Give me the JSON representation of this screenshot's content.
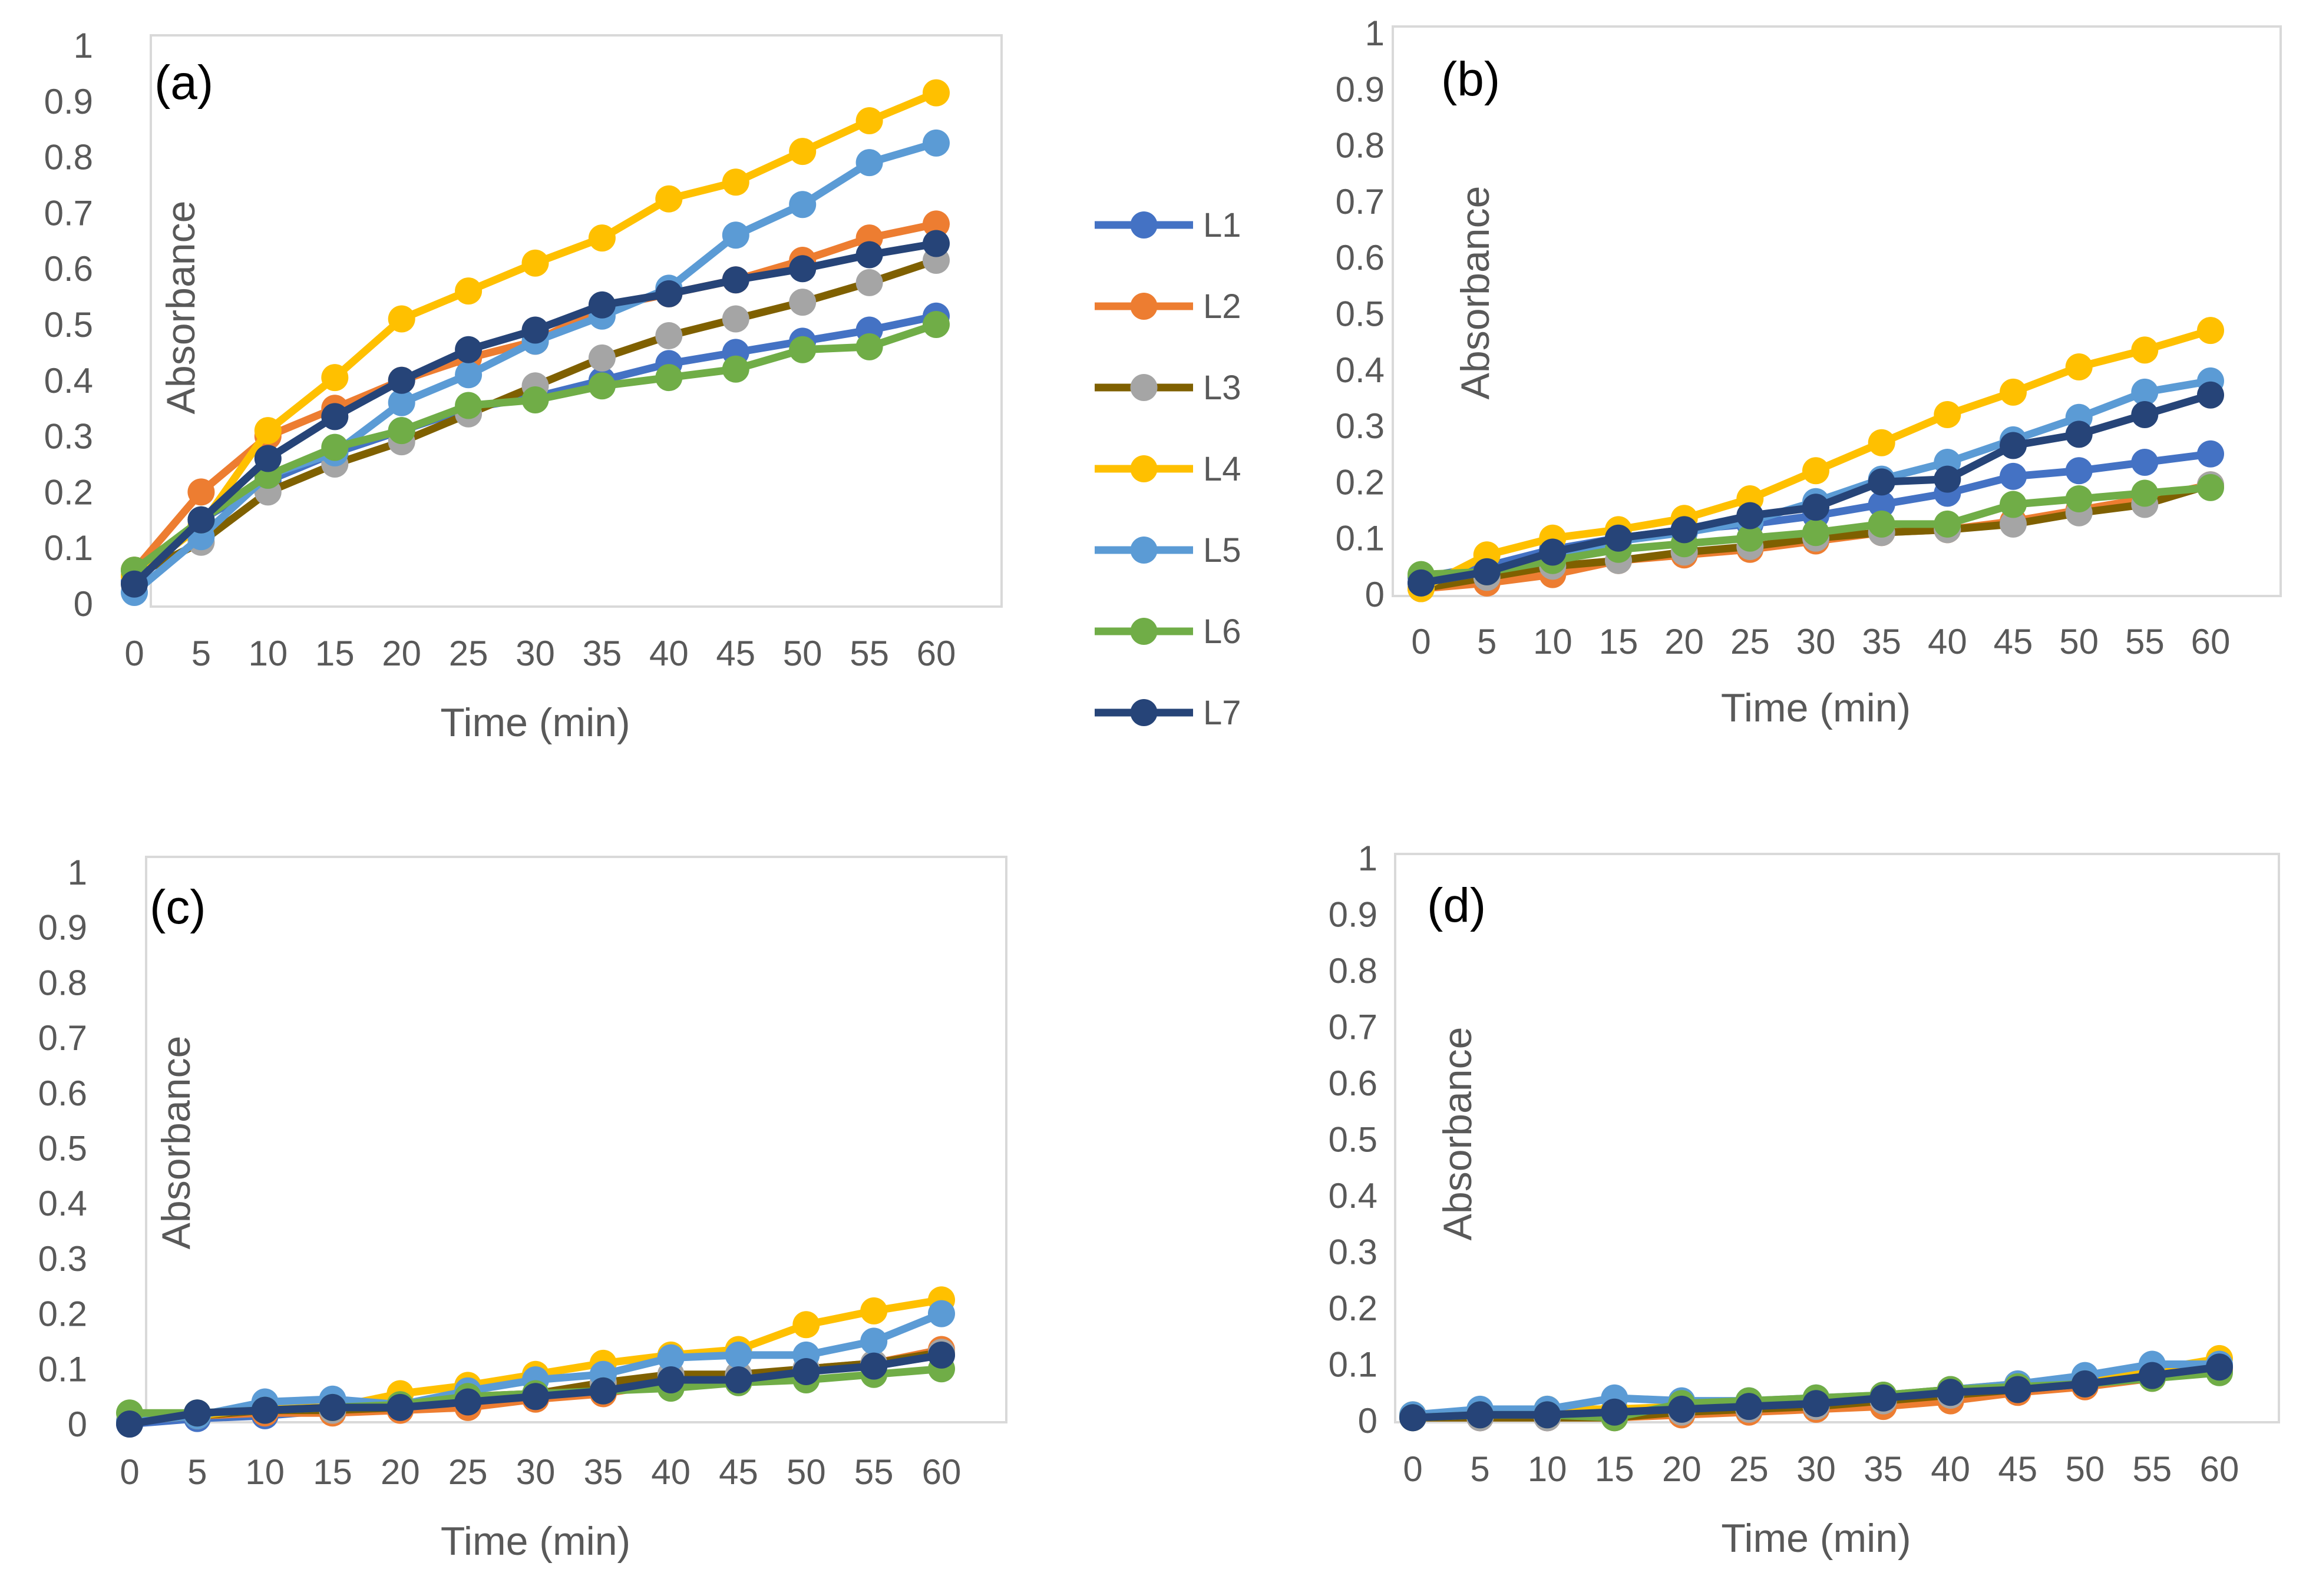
{
  "legend": [
    "L1",
    "L2",
    "L3",
    "L4",
    "L5",
    "L6",
    "L7"
  ],
  "series_colors": {
    "L1": "#4472C4",
    "L2": "#ED7D31",
    "L3": "#A5A5A5",
    "L3_line": "#7F6000",
    "L4": "#FFC000",
    "L5": "#5B9BD5",
    "L6": "#70AD47",
    "L7": "#264478"
  },
  "chart_data": [
    {
      "type": "line",
      "panel": "(a)",
      "xlabel": "Time (min)",
      "ylabel": "Absorbance",
      "x": [
        0,
        5,
        10,
        15,
        20,
        25,
        30,
        35,
        40,
        45,
        50,
        55,
        60
      ],
      "ylim": [
        0,
        1
      ],
      "yticks": [
        "0",
        "0.1",
        "0.2",
        "0.3",
        "0.4",
        "0.5",
        "0.6",
        "0.7",
        "0.8",
        "0.9",
        "1"
      ],
      "series": [
        {
          "name": "L1",
          "values": [
            0.04,
            0.15,
            0.22,
            0.27,
            0.31,
            0.35,
            0.37,
            0.4,
            0.43,
            0.45,
            0.47,
            0.49,
            0.515
          ]
        },
        {
          "name": "L2",
          "values": [
            0.06,
            0.2,
            0.3,
            0.35,
            0.4,
            0.44,
            0.47,
            0.53,
            0.555,
            0.58,
            0.615,
            0.655,
            0.68
          ]
        },
        {
          "name": "L3",
          "values": [
            0.05,
            0.11,
            0.2,
            0.25,
            0.29,
            0.34,
            0.39,
            0.44,
            0.48,
            0.51,
            0.54,
            0.575,
            0.615
          ]
        },
        {
          "name": "L4",
          "values": [
            0.05,
            0.14,
            0.31,
            0.405,
            0.51,
            0.56,
            0.61,
            0.655,
            0.725,
            0.755,
            0.81,
            0.865,
            0.915
          ]
        },
        {
          "name": "L5",
          "values": [
            0.02,
            0.12,
            0.23,
            0.27,
            0.36,
            0.41,
            0.47,
            0.515,
            0.565,
            0.66,
            0.715,
            0.79,
            0.825
          ]
        },
        {
          "name": "L6",
          "values": [
            0.06,
            0.15,
            0.23,
            0.28,
            0.31,
            0.355,
            0.365,
            0.39,
            0.405,
            0.42,
            0.455,
            0.46,
            0.5
          ]
        },
        {
          "name": "L7",
          "values": [
            0.035,
            0.15,
            0.26,
            0.335,
            0.4,
            0.455,
            0.49,
            0.535,
            0.555,
            0.58,
            0.6,
            0.625,
            0.645
          ]
        }
      ]
    },
    {
      "type": "line",
      "panel": "(b)",
      "xlabel": "Time (min)",
      "ylabel": "Absorbance",
      "x": [
        0,
        5,
        10,
        15,
        20,
        25,
        30,
        35,
        40,
        45,
        50,
        55,
        60
      ],
      "ylim": [
        0,
        1
      ],
      "yticks": [
        "0",
        "0.1",
        "0.2",
        "0.3",
        "0.4",
        "0.5",
        "0.6",
        "0.7",
        "0.8",
        "0.9",
        "1"
      ],
      "series": [
        {
          "name": "L1",
          "values": [
            0.03,
            0.05,
            0.08,
            0.1,
            0.115,
            0.125,
            0.14,
            0.16,
            0.18,
            0.21,
            0.22,
            0.235,
            0.25
          ]
        },
        {
          "name": "L2",
          "values": [
            0.01,
            0.02,
            0.035,
            0.06,
            0.07,
            0.08,
            0.095,
            0.11,
            0.115,
            0.13,
            0.15,
            0.17,
            0.195
          ]
        },
        {
          "name": "L3",
          "values": [
            0.01,
            0.03,
            0.05,
            0.06,
            0.075,
            0.085,
            0.1,
            0.11,
            0.115,
            0.125,
            0.145,
            0.16,
            0.195
          ]
        },
        {
          "name": "L4",
          "values": [
            0.01,
            0.07,
            0.1,
            0.115,
            0.135,
            0.17,
            0.22,
            0.27,
            0.32,
            0.36,
            0.405,
            0.435,
            0.47
          ]
        },
        {
          "name": "L5",
          "values": [
            0.02,
            0.04,
            0.07,
            0.095,
            0.11,
            0.13,
            0.165,
            0.205,
            0.235,
            0.275,
            0.315,
            0.36,
            0.38
          ]
        },
        {
          "name": "L6",
          "values": [
            0.035,
            0.04,
            0.06,
            0.08,
            0.09,
            0.1,
            0.11,
            0.125,
            0.125,
            0.16,
            0.17,
            0.18,
            0.19
          ]
        },
        {
          "name": "L7",
          "values": [
            0.02,
            0.04,
            0.075,
            0.1,
            0.115,
            0.14,
            0.155,
            0.2,
            0.205,
            0.265,
            0.285,
            0.32,
            0.355
          ]
        }
      ]
    },
    {
      "type": "line",
      "panel": "(c)",
      "xlabel": "Time (min)",
      "ylabel": "Absorbance",
      "x": [
        0,
        5,
        10,
        15,
        20,
        25,
        30,
        35,
        40,
        45,
        50,
        55,
        60
      ],
      "ylim": [
        0,
        1
      ],
      "yticks": [
        "0",
        "0.1",
        "0.2",
        "0.3",
        "0.4",
        "0.5",
        "0.6",
        "0.7",
        "0.8",
        "0.9",
        "1"
      ],
      "series": [
        {
          "name": "L1",
          "values": [
            0.0,
            0.01,
            0.015,
            0.025,
            0.03,
            0.045,
            0.055,
            0.065,
            0.085,
            0.085,
            0.1,
            0.105,
            0.125
          ]
        },
        {
          "name": "L2",
          "values": [
            0.005,
            0.015,
            0.02,
            0.02,
            0.025,
            0.03,
            0.045,
            0.055,
            0.075,
            0.085,
            0.1,
            0.11,
            0.135
          ]
        },
        {
          "name": "L3",
          "values": [
            0.005,
            0.015,
            0.025,
            0.025,
            0.03,
            0.05,
            0.055,
            0.075,
            0.09,
            0.09,
            0.1,
            0.11,
            0.13
          ]
        },
        {
          "name": "L4",
          "values": [
            0.005,
            0.015,
            0.03,
            0.03,
            0.055,
            0.07,
            0.09,
            0.11,
            0.125,
            0.135,
            0.18,
            0.205,
            0.225
          ]
        },
        {
          "name": "L5",
          "values": [
            0.005,
            0.015,
            0.04,
            0.045,
            0.035,
            0.06,
            0.08,
            0.09,
            0.12,
            0.125,
            0.125,
            0.15,
            0.2
          ]
        },
        {
          "name": "L6",
          "values": [
            0.02,
            0.02,
            0.025,
            0.03,
            0.035,
            0.05,
            0.055,
            0.06,
            0.065,
            0.075,
            0.08,
            0.09,
            0.1
          ]
        },
        {
          "name": "L7",
          "values": [
            0.0,
            0.02,
            0.025,
            0.03,
            0.03,
            0.04,
            0.05,
            0.06,
            0.08,
            0.08,
            0.095,
            0.105,
            0.125
          ]
        }
      ]
    },
    {
      "type": "line",
      "panel": "(d)",
      "xlabel": "Time (min)",
      "ylabel": "Absorbance",
      "x": [
        0,
        5,
        10,
        15,
        20,
        25,
        30,
        35,
        40,
        45,
        50,
        55,
        60
      ],
      "ylim": [
        0,
        1
      ],
      "yticks": [
        "0",
        "0.1",
        "0.2",
        "0.3",
        "0.4",
        "0.5",
        "0.6",
        "0.7",
        "0.8",
        "0.9",
        "1"
      ],
      "series": [
        {
          "name": "L1",
          "values": [
            0.005,
            0.005,
            0.005,
            0.01,
            0.015,
            0.02,
            0.025,
            0.035,
            0.045,
            0.055,
            0.065,
            0.08,
            0.095
          ]
        },
        {
          "name": "L2",
          "values": [
            0.005,
            0.005,
            0.005,
            0.005,
            0.01,
            0.015,
            0.02,
            0.025,
            0.035,
            0.05,
            0.06,
            0.075,
            0.09
          ]
        },
        {
          "name": "L3",
          "values": [
            0.005,
            0.005,
            0.005,
            0.005,
            0.015,
            0.02,
            0.025,
            0.035,
            0.045,
            0.055,
            0.065,
            0.08,
            0.095
          ]
        },
        {
          "name": "L4",
          "values": [
            0.01,
            0.015,
            0.02,
            0.02,
            0.025,
            0.03,
            0.035,
            0.045,
            0.055,
            0.065,
            0.075,
            0.09,
            0.11
          ]
        },
        {
          "name": "L5",
          "values": [
            0.01,
            0.02,
            0.02,
            0.04,
            0.035,
            0.035,
            0.04,
            0.045,
            0.055,
            0.065,
            0.08,
            0.1,
            0.1
          ]
        },
        {
          "name": "L6",
          "values": [
            0.005,
            0.01,
            0.01,
            0.005,
            0.03,
            0.035,
            0.04,
            0.045,
            0.055,
            0.06,
            0.065,
            0.075,
            0.085
          ]
        },
        {
          "name": "L7",
          "values": [
            0.005,
            0.01,
            0.01,
            0.015,
            0.02,
            0.025,
            0.03,
            0.04,
            0.05,
            0.055,
            0.065,
            0.08,
            0.095
          ]
        }
      ]
    }
  ]
}
